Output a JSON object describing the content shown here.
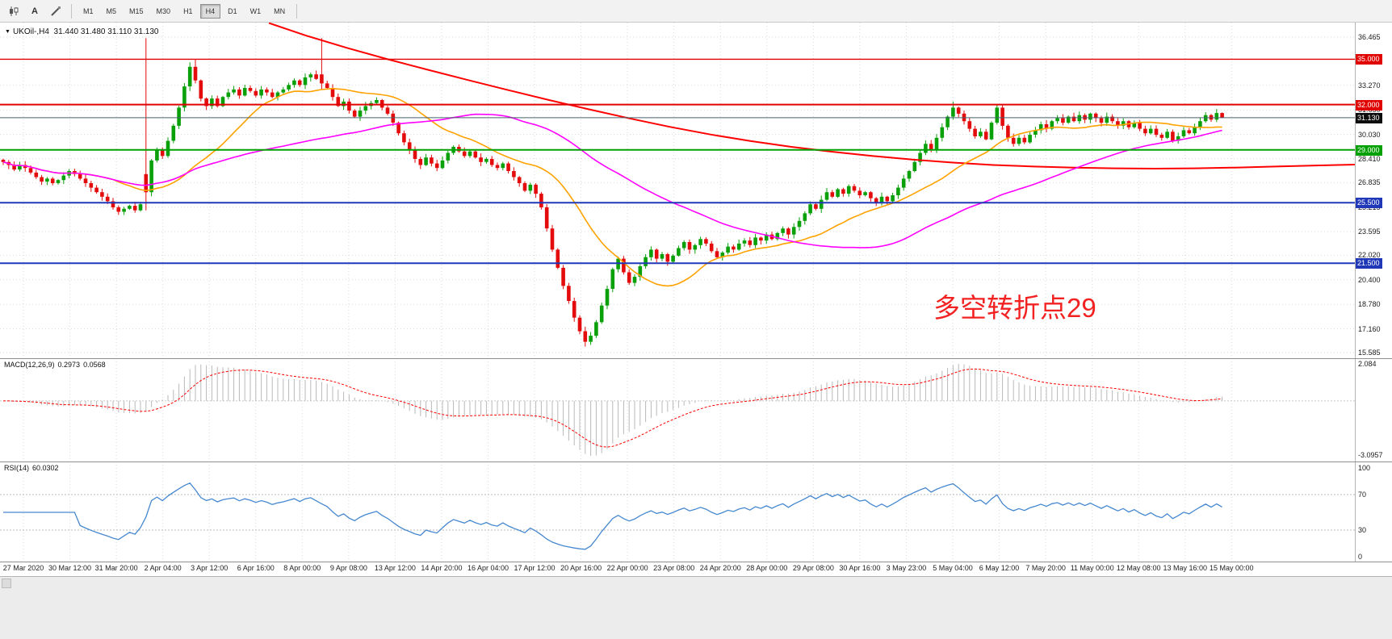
{
  "toolbar": {
    "text_tool_label": "A",
    "timeframes": [
      "M1",
      "M5",
      "M15",
      "M30",
      "H1",
      "H4",
      "D1",
      "W1",
      "MN"
    ],
    "active_timeframe": "H4"
  },
  "chart": {
    "symbol": "UKOil-,H4",
    "ohlc": {
      "open": "31.440",
      "high": "31.480",
      "low": "31.110",
      "close": "31.130"
    },
    "annotation": "多空转折点29",
    "price_axis": {
      "grid_labels": [
        "36.465",
        "33.270",
        "31.650",
        "30.030",
        "28.410",
        "26.835",
        "25.215",
        "23.595",
        "22.020",
        "20.400",
        "18.780",
        "17.160",
        "15.585"
      ],
      "hlines": [
        {
          "price": "35.000",
          "color": "#e00000",
          "width": 1.4
        },
        {
          "price": "32.000",
          "color": "#e00000",
          "width": 2
        },
        {
          "price": "29.000",
          "color": "#00a000",
          "width": 2
        },
        {
          "price": "25.500",
          "color": "#2038b8",
          "width": 2
        },
        {
          "price": "21.500",
          "color": "#2038b8",
          "width": 2
        }
      ],
      "current_price": {
        "label": "31.130",
        "value": 31.13,
        "badge_color": "#0c0c0c",
        "line_color": "#46606c"
      }
    }
  },
  "indicators": {
    "macd": {
      "label": "MACD(12,26,9)",
      "value_main": "0.2973",
      "value_signal": "0.0568",
      "axis": [
        "2.084",
        "-3.0957"
      ],
      "params": [
        12,
        26,
        9
      ]
    },
    "rsi": {
      "label": "RSI(14)",
      "value": "60.0302",
      "axis": [
        "100",
        "70",
        "30",
        "0"
      ],
      "levels": [
        70,
        30
      ],
      "period": 14
    }
  },
  "chart_data": {
    "type": "candlestick",
    "symbol": "UKOil-",
    "timeframe": "H4",
    "ylim": [
      15.585,
      36.465
    ],
    "time_labels": [
      "27 Mar 2020",
      "30 Mar 12:00",
      "31 Mar 20:00",
      "2 Apr 04:00",
      "3 Apr 12:00",
      "6 Apr 16:00",
      "8 Apr 00:00",
      "9 Apr 08:00",
      "13 Apr 12:00",
      "14 Apr 20:00",
      "16 Apr 04:00",
      "17 Apr 12:00",
      "20 Apr 16:00",
      "22 Apr 00:00",
      "23 Apr 08:00",
      "24 Apr 20:00",
      "28 Apr 00:00",
      "29 Apr 08:00",
      "30 Apr 16:00",
      "3 May 23:00",
      "5 May 04:00",
      "6 May 12:00",
      "7 May 20:00",
      "11 May 00:00",
      "12 May 08:00",
      "13 May 16:00",
      "15 May 00:00"
    ],
    "closes": [
      28.2,
      28.0,
      27.7,
      28.0,
      27.8,
      27.5,
      27.2,
      26.9,
      27.1,
      26.8,
      27.0,
      27.3,
      27.6,
      27.4,
      27.1,
      26.8,
      26.5,
      26.2,
      25.9,
      25.6,
      25.2,
      24.9,
      25.1,
      25.3,
      25.0,
      25.4,
      26.2,
      28.3,
      29.0,
      28.6,
      29.6,
      30.6,
      31.8,
      33.2,
      34.5,
      33.6,
      32.4,
      31.9,
      32.4,
      31.9,
      32.5,
      32.8,
      33.0,
      32.6,
      33.1,
      32.9,
      32.6,
      33.0,
      32.8,
      32.5,
      32.8,
      33.0,
      33.3,
      33.6,
      33.3,
      33.8,
      34.0,
      33.7,
      33.4,
      33.1,
      32.5,
      31.9,
      32.2,
      31.6,
      31.2,
      31.6,
      31.9,
      32.1,
      32.3,
      31.8,
      31.4,
      30.8,
      30.1,
      29.5,
      29.0,
      28.4,
      28.0,
      28.5,
      28.1,
      27.8,
      28.3,
      28.8,
      29.2,
      28.9,
      28.6,
      28.9,
      28.5,
      28.2,
      28.4,
      28.0,
      27.8,
      28.1,
      27.6,
      27.2,
      26.8,
      26.3,
      26.7,
      26.1,
      25.2,
      23.8,
      22.4,
      21.2,
      20.0,
      19.0,
      17.9,
      17.0,
      16.3,
      16.7,
      17.6,
      18.7,
      19.8,
      21.1,
      21.8,
      20.9,
      20.2,
      20.6,
      21.3,
      21.9,
      22.4,
      21.8,
      22.1,
      21.6,
      22.0,
      22.5,
      22.9,
      22.4,
      22.7,
      23.1,
      22.8,
      22.3,
      21.9,
      22.2,
      22.6,
      22.4,
      22.8,
      23.0,
      22.7,
      23.2,
      23.0,
      23.4,
      23.1,
      23.5,
      23.8,
      23.4,
      23.9,
      24.3,
      24.8,
      25.4,
      25.1,
      25.7,
      26.2,
      25.9,
      26.4,
      26.1,
      26.6,
      26.3,
      26.0,
      26.2,
      25.8,
      25.5,
      25.9,
      25.6,
      26.0,
      26.5,
      27.1,
      27.6,
      28.2,
      28.8,
      29.4,
      29.0,
      29.8,
      30.5,
      31.2,
      31.8,
      31.4,
      30.9,
      30.4,
      29.9,
      30.2,
      29.7,
      30.8,
      31.8,
      30.6,
      29.8,
      29.4,
      29.8,
      29.5,
      30.0,
      30.3,
      30.7,
      30.4,
      30.9,
      31.1,
      30.8,
      31.2,
      30.9,
      31.3,
      31.0,
      31.4,
      31.1,
      30.8,
      31.2,
      30.9,
      30.6,
      30.9,
      30.5,
      30.8,
      30.4,
      30.1,
      30.4,
      30.0,
      29.8,
      30.2,
      29.6,
      29.9,
      30.3,
      30.1,
      30.5,
      30.9,
      31.3,
      31.0,
      31.44,
      31.13
    ],
    "candle_overrides": {
      "26": [
        27.4,
        36.4,
        25.0,
        26.2
      ],
      "34": [
        33.2,
        34.8,
        32.9,
        34.5
      ],
      "35": [
        34.5,
        35.0,
        33.4,
        33.6
      ],
      "58": [
        34.0,
        36.4,
        33.0,
        33.4
      ],
      "106": [
        17.0,
        17.3,
        15.98,
        16.3
      ],
      "173": [
        31.2,
        32.2,
        31.0,
        31.8
      ],
      "222": [
        31.44,
        31.48,
        31.11,
        31.13
      ]
    },
    "moving_averages": {
      "fast_period": 21,
      "slow_period": 60
    },
    "red_ma_points": [
      [
        333,
        37.4
      ],
      [
        380,
        36.55
      ],
      [
        430,
        35.75
      ],
      [
        480,
        35.0
      ],
      [
        530,
        34.3
      ],
      [
        580,
        33.62
      ],
      [
        630,
        32.95
      ],
      [
        680,
        32.3
      ],
      [
        730,
        31.68
      ],
      [
        780,
        31.08
      ],
      [
        830,
        30.52
      ],
      [
        880,
        30.02
      ],
      [
        930,
        29.58
      ],
      [
        980,
        29.2
      ],
      [
        1030,
        28.88
      ],
      [
        1080,
        28.6
      ],
      [
        1130,
        28.36
      ],
      [
        1180,
        28.16
      ],
      [
        1230,
        28.0
      ],
      [
        1280,
        27.9
      ],
      [
        1330,
        27.83
      ],
      [
        1380,
        27.78
      ],
      [
        1430,
        27.76
      ],
      [
        1480,
        27.78
      ],
      [
        1530,
        27.83
      ],
      [
        1580,
        27.9
      ],
      [
        1630,
        27.97
      ],
      [
        1678,
        28.03
      ]
    ],
    "colors": {
      "up": "#0aa00a",
      "down": "#e30b0b",
      "ma_fast": "#ffa200",
      "ma_slow": "#ff00ff",
      "ma_red": "#ff0000",
      "macd_hist": "#b9b9b9",
      "macd_signal": "#ff0000",
      "rsi_line": "#4688cf"
    }
  }
}
